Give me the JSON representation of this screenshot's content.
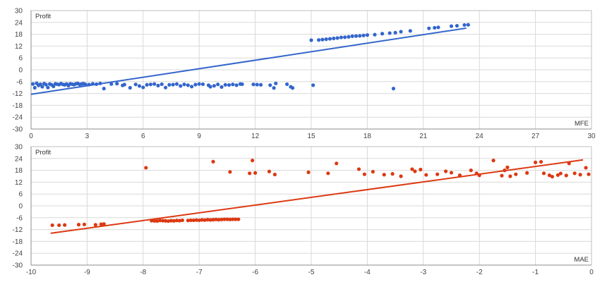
{
  "chart_data": [
    {
      "type": "scatter",
      "ylabel": "Profit",
      "xlabel": "MFE",
      "xlim": [
        0,
        30
      ],
      "ylim": [
        -30,
        30
      ],
      "xticks": [
        0,
        3,
        6,
        9,
        12,
        15,
        18,
        21,
        24,
        27,
        30
      ],
      "yticks": [
        -30,
        -24,
        -18,
        -12,
        -6,
        0,
        6,
        12,
        18,
        24,
        30
      ],
      "grid": true,
      "color": "#3366cc",
      "trendline": {
        "x": [
          0,
          23.3
        ],
        "y": [
          -12.4,
          21.1
        ]
      },
      "series": [
        {
          "points": [
            [
              0.1,
              -7.2
            ],
            [
              0.2,
              -9.1
            ],
            [
              0.3,
              -6.8
            ],
            [
              0.4,
              -7.9
            ],
            [
              0.5,
              -7.3
            ],
            [
              0.6,
              -8.6
            ],
            [
              0.7,
              -7.0
            ],
            [
              0.8,
              -7.5
            ],
            [
              0.9,
              -9.0
            ],
            [
              1.0,
              -7.2
            ],
            [
              1.1,
              -7.6
            ],
            [
              1.2,
              -8.4
            ],
            [
              1.3,
              -7.1
            ],
            [
              1.4,
              -7.3
            ],
            [
              1.5,
              -7.5
            ],
            [
              1.6,
              -7.0
            ],
            [
              1.7,
              -7.4
            ],
            [
              1.8,
              -7.6
            ],
            [
              1.9,
              -7.2
            ],
            [
              2.0,
              -8.0
            ],
            [
              2.1,
              -7.1
            ],
            [
              2.2,
              -7.3
            ],
            [
              2.3,
              -7.5
            ],
            [
              2.4,
              -7.1
            ],
            [
              2.5,
              -6.9
            ],
            [
              2.6,
              -7.4
            ],
            [
              2.7,
              -7.2
            ],
            [
              2.8,
              -7.0
            ],
            [
              2.9,
              -7.3
            ],
            [
              3.1,
              -7.5
            ],
            [
              3.3,
              -7.1
            ],
            [
              3.5,
              -7.3
            ],
            [
              3.7,
              -6.9
            ],
            [
              3.9,
              -9.5
            ],
            [
              4.3,
              -7.2
            ],
            [
              4.6,
              -7.0
            ],
            [
              4.9,
              -7.9
            ],
            [
              5.0,
              -7.5
            ],
            [
              5.3,
              -9.1
            ],
            [
              5.6,
              -7.4
            ],
            [
              5.8,
              -8.2
            ],
            [
              6.0,
              -8.9
            ],
            [
              6.2,
              -7.6
            ],
            [
              6.4,
              -7.4
            ],
            [
              6.6,
              -7.2
            ],
            [
              6.8,
              -8.0
            ],
            [
              7.0,
              -7.3
            ],
            [
              7.2,
              -9.0
            ],
            [
              7.4,
              -7.6
            ],
            [
              7.6,
              -7.5
            ],
            [
              7.8,
              -7.2
            ],
            [
              8.0,
              -8.2
            ],
            [
              8.2,
              -7.4
            ],
            [
              8.4,
              -7.8
            ],
            [
              8.6,
              -8.5
            ],
            [
              8.8,
              -7.5
            ],
            [
              9.0,
              -7.2
            ],
            [
              9.2,
              -7.3
            ],
            [
              9.5,
              -7.8
            ],
            [
              9.6,
              -8.6
            ],
            [
              9.8,
              -8.1
            ],
            [
              10.0,
              -7.4
            ],
            [
              10.2,
              -8.7
            ],
            [
              10.4,
              -7.6
            ],
            [
              10.6,
              -7.7
            ],
            [
              10.8,
              -7.4
            ],
            [
              11.0,
              -7.8
            ],
            [
              11.2,
              -7.2
            ],
            [
              11.3,
              -7.3
            ],
            [
              11.9,
              -7.4
            ],
            [
              12.1,
              -7.5
            ],
            [
              12.3,
              -7.6
            ],
            [
              12.8,
              -7.8
            ],
            [
              13.0,
              -9.2
            ],
            [
              13.1,
              -6.9
            ],
            [
              13.7,
              -7.3
            ],
            [
              13.9,
              -8.6
            ],
            [
              14.0,
              -9.2
            ],
            [
              15.1,
              -7.8
            ],
            [
              19.4,
              -9.5
            ],
            [
              15.0,
              15.0
            ],
            [
              15.4,
              15.1
            ],
            [
              15.6,
              15.3
            ],
            [
              15.8,
              15.5
            ],
            [
              16.0,
              15.7
            ],
            [
              16.2,
              15.9
            ],
            [
              16.4,
              16.1
            ],
            [
              16.6,
              16.4
            ],
            [
              16.8,
              16.5
            ],
            [
              17.0,
              16.7
            ],
            [
              17.2,
              17.0
            ],
            [
              17.4,
              17.1
            ],
            [
              17.6,
              17.2
            ],
            [
              17.8,
              17.4
            ],
            [
              18.0,
              17.6
            ],
            [
              18.4,
              17.8
            ],
            [
              18.8,
              18.3
            ],
            [
              19.2,
              18.6
            ],
            [
              19.5,
              18.8
            ],
            [
              19.8,
              19.3
            ],
            [
              20.3,
              19.7
            ],
            [
              21.3,
              21.0
            ],
            [
              21.6,
              21.3
            ],
            [
              21.8,
              21.5
            ],
            [
              22.5,
              22.1
            ],
            [
              22.8,
              22.3
            ],
            [
              23.2,
              22.7
            ],
            [
              23.4,
              22.8
            ]
          ]
        }
      ]
    },
    {
      "type": "scatter",
      "ylabel": "Profit",
      "xlabel": "MAE",
      "xlim": [
        -10,
        0
      ],
      "ylim": [
        -30,
        30
      ],
      "xticks": [
        -10,
        -9,
        -8,
        -7,
        -6,
        -5,
        -4,
        -3,
        -2,
        -1,
        0
      ],
      "yticks": [
        -30,
        -24,
        -18,
        -12,
        -6,
        0,
        6,
        12,
        18,
        24,
        30
      ],
      "grid": true,
      "color": "#dc3912",
      "trendline": {
        "x": [
          -9.65,
          -0.15
        ],
        "y": [
          -13.9,
          23.3
        ]
      },
      "series": [
        {
          "points": [
            [
              -9.62,
              -9.8
            ],
            [
              -9.5,
              -9.8
            ],
            [
              -9.4,
              -9.7
            ],
            [
              -9.15,
              -9.5
            ],
            [
              -9.05,
              -9.4
            ],
            [
              -8.85,
              -9.6
            ],
            [
              -8.75,
              -9.3
            ],
            [
              -8.7,
              -9.2
            ],
            [
              -7.85,
              -7.5
            ],
            [
              -7.8,
              -7.6
            ],
            [
              -7.75,
              -7.7
            ],
            [
              -7.7,
              -7.4
            ],
            [
              -7.65,
              -7.5
            ],
            [
              -7.6,
              -7.6
            ],
            [
              -7.55,
              -7.7
            ],
            [
              -7.5,
              -7.5
            ],
            [
              -7.45,
              -7.6
            ],
            [
              -7.4,
              -7.4
            ],
            [
              -7.35,
              -7.5
            ],
            [
              -7.3,
              -7.3
            ],
            [
              -7.2,
              -7.4
            ],
            [
              -7.15,
              -7.3
            ],
            [
              -7.1,
              -7.3
            ],
            [
              -7.05,
              -7.2
            ],
            [
              -7.0,
              -7.3
            ],
            [
              -6.95,
              -7.1
            ],
            [
              -6.9,
              -7.2
            ],
            [
              -6.85,
              -7.0
            ],
            [
              -6.8,
              -7.1
            ],
            [
              -6.75,
              -7.0
            ],
            [
              -6.7,
              -6.9
            ],
            [
              -6.65,
              -7.0
            ],
            [
              -6.6,
              -6.9
            ],
            [
              -6.55,
              -6.8
            ],
            [
              -6.5,
              -6.8
            ],
            [
              -6.45,
              -6.9
            ],
            [
              -6.4,
              -6.8
            ],
            [
              -6.35,
              -6.8
            ],
            [
              -6.3,
              -6.8
            ],
            [
              -7.95,
              19.3
            ],
            [
              -6.75,
              22.4
            ],
            [
              -6.45,
              17.2
            ],
            [
              -6.1,
              16.5
            ],
            [
              -6.05,
              23.0
            ],
            [
              -6.0,
              16.7
            ],
            [
              -5.75,
              17.4
            ],
            [
              -5.65,
              15.9
            ],
            [
              -5.05,
              17.0
            ],
            [
              -4.7,
              16.5
            ],
            [
              -4.55,
              21.5
            ],
            [
              -4.15,
              18.6
            ],
            [
              -4.05,
              16.0
            ],
            [
              -3.9,
              17.3
            ],
            [
              -3.7,
              15.8
            ],
            [
              -3.55,
              16.2
            ],
            [
              -3.4,
              15.0
            ],
            [
              -3.2,
              18.6
            ],
            [
              -3.15,
              17.5
            ],
            [
              -3.05,
              18.4
            ],
            [
              -2.95,
              15.7
            ],
            [
              -2.75,
              16.0
            ],
            [
              -2.6,
              17.5
            ],
            [
              -2.5,
              16.8
            ],
            [
              -2.35,
              15.5
            ],
            [
              -2.15,
              18.0
            ],
            [
              -2.05,
              16.5
            ],
            [
              -2.0,
              15.5
            ],
            [
              -1.75,
              23.0
            ],
            [
              -1.6,
              15.3
            ],
            [
              -1.55,
              18.0
            ],
            [
              -1.5,
              19.5
            ],
            [
              -1.45,
              15.0
            ],
            [
              -1.35,
              16.0
            ],
            [
              -1.15,
              16.7
            ],
            [
              -1.0,
              22.0
            ],
            [
              -0.9,
              22.3
            ],
            [
              -0.85,
              16.5
            ],
            [
              -0.75,
              15.5
            ],
            [
              -0.7,
              14.8
            ],
            [
              -0.6,
              15.6
            ],
            [
              -0.55,
              16.4
            ],
            [
              -0.45,
              15.4
            ],
            [
              -0.4,
              21.5
            ],
            [
              -0.3,
              16.5
            ],
            [
              -0.2,
              15.8
            ],
            [
              -0.1,
              19.3
            ],
            [
              -0.05,
              16.0
            ]
          ]
        }
      ]
    }
  ]
}
